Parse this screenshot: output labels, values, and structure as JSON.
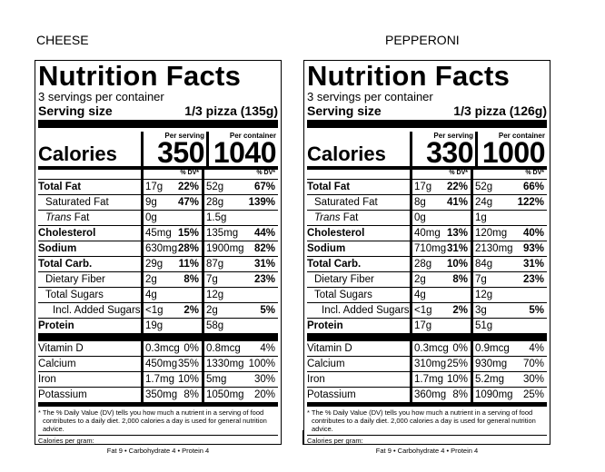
{
  "labels": [
    {
      "caption": "CHEESE",
      "title": "Nutrition Facts",
      "servings": "3 servings per container",
      "serving_size_label": "Serving size",
      "serving_size": "1/3 pizza (135g)",
      "per_serving_label": "Per serving",
      "per_container_label": "Per container",
      "calories_label": "Calories",
      "calories_serving": "350",
      "calories_container": "1040",
      "dv_label": "% DV*",
      "nutrients": [
        {
          "label": "Total Fat",
          "amt1": "17g",
          "pct1": "22%",
          "amt2": "52g",
          "pct2": "67%"
        },
        {
          "label": "Saturated Fat",
          "amt1": "9g",
          "pct1": "47%",
          "amt2": "28g",
          "pct2": "139%"
        },
        {
          "label": "Trans",
          "label_suffix": " Fat",
          "amt1": "0g",
          "pct1": "",
          "amt2": "1.5g",
          "pct2": ""
        },
        {
          "label": "Cholesterol",
          "amt1": "45mg",
          "pct1": "15%",
          "amt2": "135mg",
          "pct2": "44%"
        },
        {
          "label": "Sodium",
          "amt1": "630mg",
          "pct1": "28%",
          "amt2": "1900mg",
          "pct2": "82%"
        },
        {
          "label": "Total Carb.",
          "amt1": "29g",
          "pct1": "11%",
          "amt2": "87g",
          "pct2": "31%"
        },
        {
          "label": "Dietary Fiber",
          "amt1": "2g",
          "pct1": "8%",
          "amt2": "7g",
          "pct2": "23%"
        },
        {
          "label": "Total Sugars",
          "amt1": "4g",
          "pct1": "",
          "amt2": "12g",
          "pct2": ""
        },
        {
          "label": "Incl. Added Sugars",
          "amt1": "<1g",
          "pct1": "2%",
          "amt2": "2g",
          "pct2": "5%"
        },
        {
          "label": "Protein",
          "amt1": "19g",
          "pct1": "",
          "amt2": "58g",
          "pct2": ""
        }
      ],
      "vitamins": [
        {
          "label": "Vitamin D",
          "amt1": "0.3mcg",
          "pct1": "0%",
          "amt2": "0.8mcg",
          "pct2": "4%"
        },
        {
          "label": "Calcium",
          "amt1": "450mg",
          "pct1": "35%",
          "amt2": "1330mg",
          "pct2": "100%"
        },
        {
          "label": "Iron",
          "amt1": "1.7mg",
          "pct1": "10%",
          "amt2": "5mg",
          "pct2": "30%"
        },
        {
          "label": "Potassium",
          "amt1": "350mg",
          "pct1": "8%",
          "amt2": "1050mg",
          "pct2": "20%"
        }
      ],
      "footnote": "* The % Daily Value (DV) tells you how much a nutrient in a serving of food contributes to a daily diet. 2,000 calories a day is used for general nutrition advice.",
      "calories_per_gram_label": "Calories per gram:",
      "calories_per_gram_values": "Fat 9 • Carbohydrate 4 • Protein 4"
    },
    {
      "caption": "PEPPERONI",
      "title": "Nutrition Facts",
      "servings": "3 servings per container",
      "serving_size_label": "Serving size",
      "serving_size": "1/3 pizza (126g)",
      "per_serving_label": "Per serving",
      "per_container_label": "Per container",
      "calories_label": "Calories",
      "calories_serving": "330",
      "calories_container": "1000",
      "dv_label": "% DV*",
      "nutrients": [
        {
          "label": "Total Fat",
          "amt1": "17g",
          "pct1": "22%",
          "amt2": "52g",
          "pct2": "66%"
        },
        {
          "label": "Saturated Fat",
          "amt1": "8g",
          "pct1": "41%",
          "amt2": "24g",
          "pct2": "122%"
        },
        {
          "label": "Trans",
          "label_suffix": " Fat",
          "amt1": "0g",
          "pct1": "",
          "amt2": "1g",
          "pct2": ""
        },
        {
          "label": "Cholesterol",
          "amt1": "40mg",
          "pct1": "13%",
          "amt2": "120mg",
          "pct2": "40%"
        },
        {
          "label": "Sodium",
          "amt1": "710mg",
          "pct1": "31%",
          "amt2": "2130mg",
          "pct2": "93%"
        },
        {
          "label": "Total Carb.",
          "amt1": "28g",
          "pct1": "10%",
          "amt2": "84g",
          "pct2": "31%"
        },
        {
          "label": "Dietary Fiber",
          "amt1": "2g",
          "pct1": "8%",
          "amt2": "7g",
          "pct2": "23%"
        },
        {
          "label": "Total Sugars",
          "amt1": "4g",
          "pct1": "",
          "amt2": "12g",
          "pct2": ""
        },
        {
          "label": "Incl. Added Sugars",
          "amt1": "<1g",
          "pct1": "2%",
          "amt2": "3g",
          "pct2": "5%"
        },
        {
          "label": "Protein",
          "amt1": "17g",
          "pct1": "",
          "amt2": "51g",
          "pct2": ""
        }
      ],
      "vitamins": [
        {
          "label": "Vitamin D",
          "amt1": "0.3mcg",
          "pct1": "0%",
          "amt2": "0.9mcg",
          "pct2": "4%"
        },
        {
          "label": "Calcium",
          "amt1": "310mg",
          "pct1": "25%",
          "amt2": "930mg",
          "pct2": "70%"
        },
        {
          "label": "Iron",
          "amt1": "1.7mg",
          "pct1": "10%",
          "amt2": "5.2mg",
          "pct2": "30%"
        },
        {
          "label": "Potassium",
          "amt1": "360mg",
          "pct1": "8%",
          "amt2": "1090mg",
          "pct2": "25%"
        }
      ],
      "footnote": "* The % Daily Value (DV) tells you how much a nutrient in a serving of food contributes to a daily diet. 2,000 calories a day is used for general nutrition advice.",
      "calories_per_gram_label": "Calories per gram:",
      "calories_per_gram_values": "Fat 9 • Carbohydrate 4 • Protein 4"
    }
  ]
}
